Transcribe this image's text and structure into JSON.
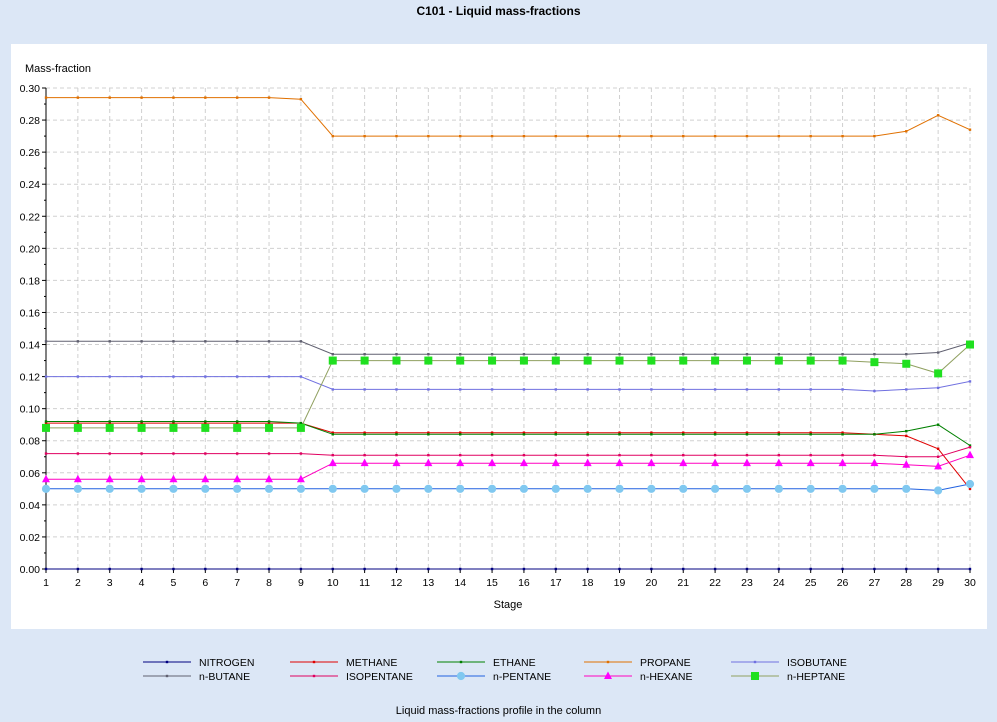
{
  "window": {
    "title": "C101 - Liquid mass-fractions",
    "footer": "Liquid mass-fractions profile in the column"
  },
  "chart_data": {
    "type": "line",
    "title": "C101 - Liquid mass-fractions",
    "xlabel": "Stage",
    "ylabel": "Mass-fraction",
    "xlim": [
      1,
      30
    ],
    "ylim": [
      0,
      0.3
    ],
    "xticks": [
      1,
      2,
      3,
      4,
      5,
      6,
      7,
      8,
      9,
      10,
      11,
      12,
      13,
      14,
      15,
      16,
      17,
      18,
      19,
      20,
      21,
      22,
      23,
      24,
      25,
      26,
      27,
      28,
      29,
      30
    ],
    "yticks": [
      0.0,
      0.02,
      0.04,
      0.06,
      0.08,
      0.1,
      0.12,
      0.14,
      0.16,
      0.18,
      0.2,
      0.22,
      0.24,
      0.26,
      0.28,
      0.3
    ],
    "grid": true,
    "legend_position": "bottom",
    "x": [
      1,
      2,
      3,
      4,
      5,
      6,
      7,
      8,
      9,
      10,
      11,
      12,
      13,
      14,
      15,
      16,
      17,
      18,
      19,
      20,
      21,
      22,
      23,
      24,
      25,
      26,
      27,
      28,
      29,
      30
    ],
    "series": [
      {
        "name": "NITROGEN",
        "color": "#000080",
        "marker": "small",
        "values": [
          0,
          0,
          0,
          0,
          0,
          0,
          0,
          0,
          0,
          0,
          0,
          0,
          0,
          0,
          0,
          0,
          0,
          0,
          0,
          0,
          0,
          0,
          0,
          0,
          0,
          0,
          0,
          0,
          0,
          0
        ]
      },
      {
        "name": "METHANE",
        "color": "#e00000",
        "marker": "small",
        "values": [
          0.091,
          0.091,
          0.091,
          0.091,
          0.091,
          0.091,
          0.091,
          0.091,
          0.091,
          0.085,
          0.085,
          0.085,
          0.085,
          0.085,
          0.085,
          0.085,
          0.085,
          0.085,
          0.085,
          0.085,
          0.085,
          0.085,
          0.085,
          0.085,
          0.085,
          0.085,
          0.084,
          0.083,
          0.075,
          0.05
        ]
      },
      {
        "name": "ETHANE",
        "color": "#008000",
        "marker": "small",
        "values": [
          0.092,
          0.092,
          0.092,
          0.092,
          0.092,
          0.092,
          0.092,
          0.092,
          0.091,
          0.084,
          0.084,
          0.084,
          0.084,
          0.084,
          0.084,
          0.084,
          0.084,
          0.084,
          0.084,
          0.084,
          0.084,
          0.084,
          0.084,
          0.084,
          0.084,
          0.084,
          0.084,
          0.086,
          0.09,
          0.077
        ]
      },
      {
        "name": "PROPANE",
        "color": "#e07000",
        "marker": "small",
        "values": [
          0.294,
          0.294,
          0.294,
          0.294,
          0.294,
          0.294,
          0.294,
          0.294,
          0.293,
          0.27,
          0.27,
          0.27,
          0.27,
          0.27,
          0.27,
          0.27,
          0.27,
          0.27,
          0.27,
          0.27,
          0.27,
          0.27,
          0.27,
          0.27,
          0.27,
          0.27,
          0.27,
          0.273,
          0.283,
          0.274
        ]
      },
      {
        "name": "ISOBUTANE",
        "color": "#7070e0",
        "marker": "small",
        "values": [
          0.12,
          0.12,
          0.12,
          0.12,
          0.12,
          0.12,
          0.12,
          0.12,
          0.12,
          0.112,
          0.112,
          0.112,
          0.112,
          0.112,
          0.112,
          0.112,
          0.112,
          0.112,
          0.112,
          0.112,
          0.112,
          0.112,
          0.112,
          0.112,
          0.112,
          0.112,
          0.111,
          0.112,
          0.113,
          0.117
        ]
      },
      {
        "name": "n-BUTANE",
        "color": "#606070",
        "marker": "small",
        "values": [
          0.142,
          0.142,
          0.142,
          0.142,
          0.142,
          0.142,
          0.142,
          0.142,
          0.142,
          0.134,
          0.134,
          0.134,
          0.134,
          0.134,
          0.134,
          0.134,
          0.134,
          0.134,
          0.134,
          0.134,
          0.134,
          0.134,
          0.134,
          0.134,
          0.134,
          0.134,
          0.134,
          0.134,
          0.135,
          0.141
        ]
      },
      {
        "name": "ISOPENTANE",
        "color": "#e00060",
        "marker": "small",
        "values": [
          0.072,
          0.072,
          0.072,
          0.072,
          0.072,
          0.072,
          0.072,
          0.072,
          0.072,
          0.071,
          0.071,
          0.071,
          0.071,
          0.071,
          0.071,
          0.071,
          0.071,
          0.071,
          0.071,
          0.071,
          0.071,
          0.071,
          0.071,
          0.071,
          0.071,
          0.071,
          0.071,
          0.07,
          0.07,
          0.076
        ]
      },
      {
        "name": "n-PENTANE",
        "color": "#2060e0",
        "marker": "circle",
        "markerColor": "#80c8f0",
        "values": [
          0.05,
          0.05,
          0.05,
          0.05,
          0.05,
          0.05,
          0.05,
          0.05,
          0.05,
          0.05,
          0.05,
          0.05,
          0.05,
          0.05,
          0.05,
          0.05,
          0.05,
          0.05,
          0.05,
          0.05,
          0.05,
          0.05,
          0.05,
          0.05,
          0.05,
          0.05,
          0.05,
          0.05,
          0.049,
          0.053
        ]
      },
      {
        "name": "n-HEXANE",
        "color": "#ff00c0",
        "marker": "triangle",
        "markerColor": "#ff00ff",
        "values": [
          0.056,
          0.056,
          0.056,
          0.056,
          0.056,
          0.056,
          0.056,
          0.056,
          0.056,
          0.066,
          0.066,
          0.066,
          0.066,
          0.066,
          0.066,
          0.066,
          0.066,
          0.066,
          0.066,
          0.066,
          0.066,
          0.066,
          0.066,
          0.066,
          0.066,
          0.066,
          0.066,
          0.065,
          0.064,
          0.071
        ]
      },
      {
        "name": "n-HEPTANE",
        "color": "#90a060",
        "marker": "square",
        "markerColor": "#20e020",
        "values": [
          0.088,
          0.088,
          0.088,
          0.088,
          0.088,
          0.088,
          0.088,
          0.088,
          0.088,
          0.13,
          0.13,
          0.13,
          0.13,
          0.13,
          0.13,
          0.13,
          0.13,
          0.13,
          0.13,
          0.13,
          0.13,
          0.13,
          0.13,
          0.13,
          0.13,
          0.13,
          0.129,
          0.128,
          0.122,
          0.14
        ]
      }
    ]
  }
}
